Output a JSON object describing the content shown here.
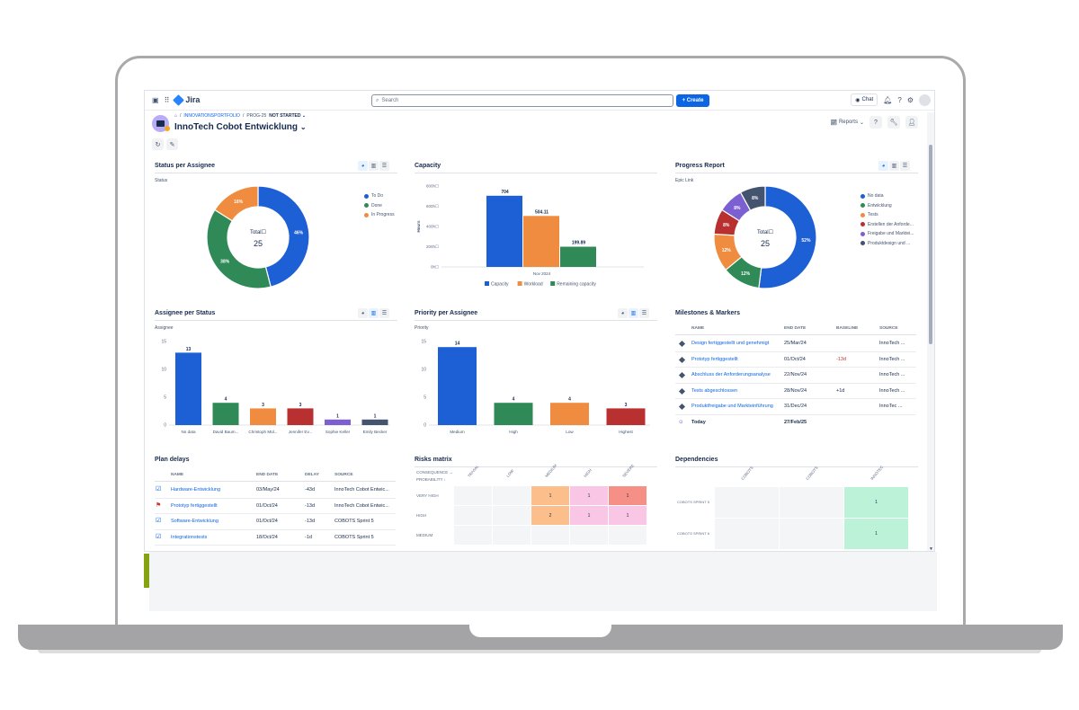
{
  "topnav": {
    "app_name": "Jira",
    "search_placeholder": "Search",
    "create_label": "+ Create",
    "chat_label": "Chat"
  },
  "header": {
    "breadcrumb": [
      "INNOVATIONSPORTFOLIO",
      "PROG-25"
    ],
    "status": "NOT STARTED",
    "title": "InnoTech Cobot Entwicklung",
    "reports_label": "Reports"
  },
  "status_per_assignee": {
    "title": "Status per Assignee",
    "subheader": "Status",
    "total_label": "Total",
    "total_value": "25",
    "chart_data": {
      "type": "pie",
      "labels": [
        "To Do",
        "Done",
        "In Progress"
      ],
      "values": [
        46,
        38,
        16
      ],
      "value_labels": [
        "46%",
        "38%",
        "16%"
      ],
      "colors": [
        "#1d5fd4",
        "#2f8a57",
        "#ef8c3f"
      ]
    }
  },
  "capacity": {
    "title": "Capacity",
    "chart_data": {
      "type": "bar",
      "categories": [
        "Nov 2024"
      ],
      "ylabel": "Hours",
      "ylim": [
        0,
        800
      ],
      "yticks": [
        "800h",
        "600h",
        "400h",
        "200h",
        "0h"
      ],
      "series": [
        {
          "name": "Capacity",
          "values": [
            704
          ],
          "label": "704",
          "color": "#1d5fd4"
        },
        {
          "name": "Workload",
          "values": [
            504.11
          ],
          "label": "504.11",
          "color": "#ef8c3f"
        },
        {
          "name": "Remaining capacity",
          "values": [
            199.89
          ],
          "label": "199.89",
          "color": "#2f8a57"
        }
      ]
    }
  },
  "progress_report": {
    "title": "Progress Report",
    "subheader": "Epic Link",
    "total_label": "Total",
    "total_value": "25",
    "chart_data": {
      "type": "pie",
      "labels": [
        "No data",
        "Entwicklung",
        "Tests",
        "Erstellen der Anforde...",
        "Freigabe und Marktei...",
        "Produktdesign und ..."
      ],
      "values": [
        52,
        12,
        12,
        8,
        8,
        8
      ],
      "value_labels": [
        "52%",
        "12%",
        "12%",
        "8%",
        "8%",
        "8%"
      ],
      "colors": [
        "#1d5fd4",
        "#2f8a57",
        "#ef8c3f",
        "#b8302f",
        "#7c5fd0",
        "#44546f"
      ]
    }
  },
  "assignee_per_status": {
    "title": "Assignee per Status",
    "subheader": "Assignee",
    "chart_data": {
      "type": "bar",
      "categories": [
        "No data",
        "David Baum...",
        "Christoph Mül...",
        "Jennifer Ev...",
        "Sophie Keller",
        "Emily Becker"
      ],
      "values": [
        13,
        4,
        3,
        3,
        1,
        1
      ],
      "colors": [
        "#1d5fd4",
        "#2f8a57",
        "#ef8c3f",
        "#b8302f",
        "#7c5fd0",
        "#44546f"
      ],
      "ylim": [
        0,
        15
      ],
      "yticks": [
        "15",
        "10",
        "5",
        "0"
      ]
    }
  },
  "priority_per_assignee": {
    "title": "Priority per Assignee",
    "subheader": "Priority",
    "chart_data": {
      "type": "bar",
      "categories": [
        "Medium",
        "High",
        "Low",
        "Highest"
      ],
      "values": [
        14,
        4,
        4,
        3
      ],
      "colors": [
        "#1d5fd4",
        "#2f8a57",
        "#ef8c3f",
        "#b8302f"
      ],
      "ylim": [
        0,
        15
      ],
      "yticks": [
        "15",
        "10",
        "5",
        "0"
      ]
    }
  },
  "milestones": {
    "title": "Milestones & Markers",
    "columns": [
      "NAME",
      "END DATE",
      "BASELINE",
      "SOURCE"
    ],
    "rows": [
      {
        "name": "Design fertiggestellt und genehmigt",
        "end": "25/Mar/24",
        "baseline": "",
        "source": "InnoTech ..."
      },
      {
        "name": "Prototyp fertiggestellt",
        "end": "01/Oct/24",
        "baseline": "-13d",
        "source": "InnoTech ..."
      },
      {
        "name": "Abschluss der Anforderungsanalyse",
        "end": "22/Nov/24",
        "baseline": "",
        "source": "InnoTech ..."
      },
      {
        "name": "Tests abgeschlossen",
        "end": "28/Nov/24",
        "baseline": "+1d",
        "source": "InnoTech ..."
      },
      {
        "name": "Produktfreigabe und Markteinführung",
        "end": "31/Dec/24",
        "baseline": "",
        "source": "InnoTec ..."
      }
    ],
    "today_label": "Today",
    "today_date": "27/Feb/25"
  },
  "plan_delays": {
    "title": "Plan delays",
    "columns": [
      "NAME",
      "END DATE",
      "DELAY",
      "SOURCE"
    ],
    "rows": [
      {
        "name": "Hardware-Entwicklung",
        "end": "03/May/24",
        "delay": "-43d",
        "source": "InnoTech Cobot Entwic..."
      },
      {
        "name": "Prototyp fertiggestellt",
        "end": "01/Oct/24",
        "delay": "-13d",
        "source": "InnoTech Cobot Entwic..."
      },
      {
        "name": "Software-Entwicklung",
        "end": "01/Oct/24",
        "delay": "-13d",
        "source": "COBOTS Sprint 5"
      },
      {
        "name": "Integrationstests",
        "end": "18/Oct/24",
        "delay": "-1d",
        "source": "COBOTS Sprint 5"
      }
    ]
  },
  "risks_matrix": {
    "title": "Risks matrix",
    "axis_consequence": "CONSEQUENCE →",
    "axis_probability": "PROBABILITY ↓",
    "columns": [
      "TRIVIAL",
      "LOW",
      "MEDIUM",
      "HIGH",
      "SEVERE"
    ],
    "rows": [
      {
        "label": "VERY HIGH",
        "cells": [
          "",
          "",
          "1",
          "1",
          "1"
        ]
      },
      {
        "label": "HIGH",
        "cells": [
          "",
          "",
          "2",
          "1",
          "1"
        ]
      },
      {
        "label": "MEDIUM",
        "cells": [
          "",
          "",
          "",
          "",
          ""
        ]
      }
    ]
  },
  "dependencies": {
    "title": "Dependencies",
    "columns": [
      "COBOTS",
      "COBOTS",
      "INNOTEC"
    ],
    "rows": [
      {
        "label": "COBOTS SPRINT 5",
        "cells": [
          "",
          "",
          "1"
        ]
      },
      {
        "label": "COBOTS SPRINT 6",
        "cells": [
          "",
          "",
          "1"
        ]
      }
    ]
  }
}
